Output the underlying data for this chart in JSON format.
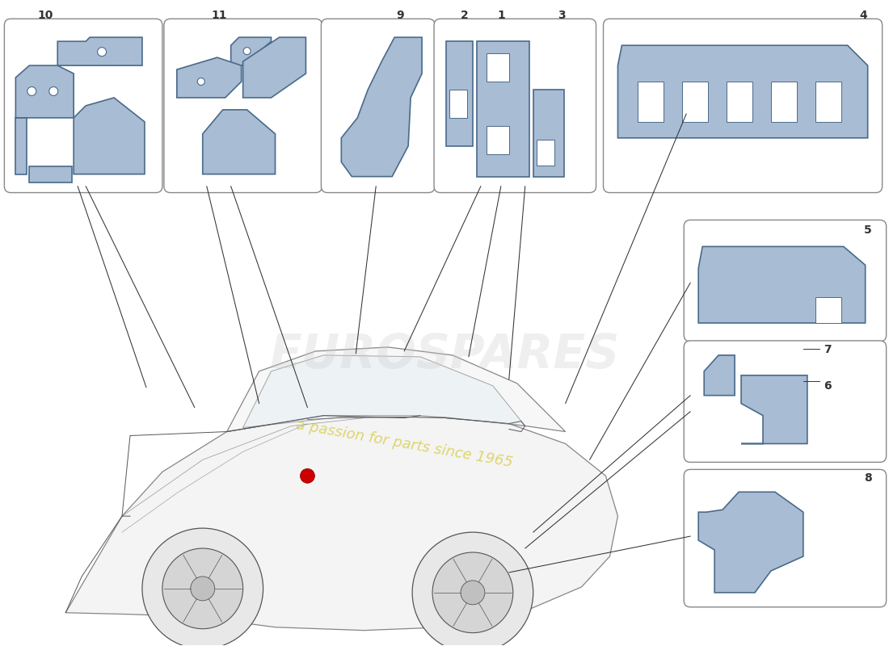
{
  "bg_color": "#ffffff",
  "part_fill_color": "#a8bcd4",
  "part_stroke_color": "#4a6a8a",
  "line_color": "#333333",
  "label_color": "#222222",
  "box_border": "#888888",
  "watermark_text1": "EUROSPARES",
  "watermark_text2": "a passion for parts since 1965",
  "watermark_color1": "#cccccc",
  "watermark_color2": "#d4c832"
}
